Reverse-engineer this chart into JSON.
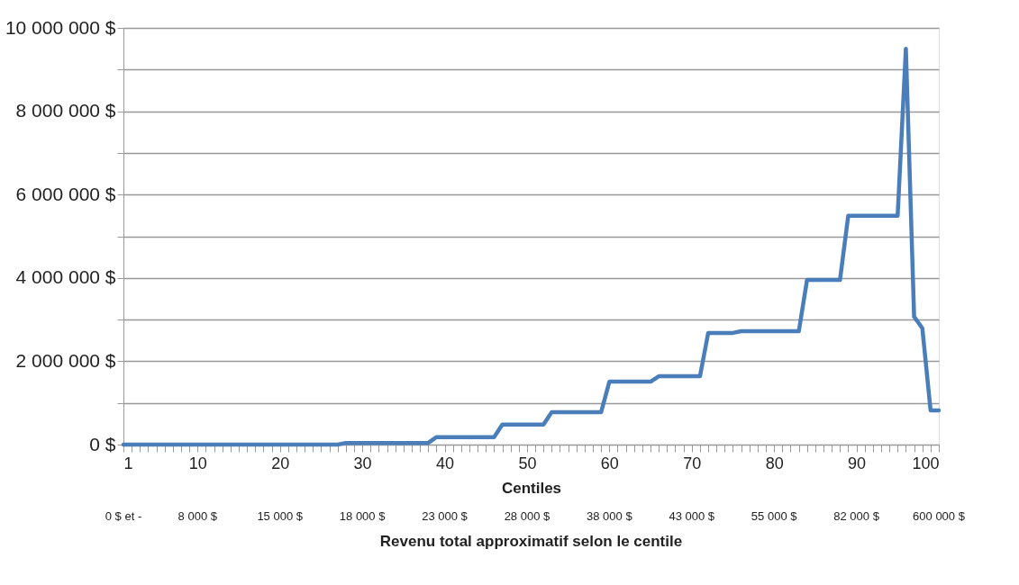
{
  "chart_data": {
    "type": "line",
    "xlabel": "Centiles",
    "annotations": [
      "0 $ et -",
      "8 000 $",
      "15 000 $",
      "18 000 $",
      "23 000 $",
      "28 000 $",
      "38 000 $",
      "43 000 $",
      "55 000 $",
      "82 000 $",
      "600 000 $",
      "Revenu total approximatif selon le centile"
    ],
    "x": [
      1,
      27,
      28,
      38,
      39,
      46,
      47,
      52,
      53,
      59,
      60,
      65,
      66,
      71,
      72,
      75,
      76,
      83,
      84,
      88,
      89,
      95,
      96,
      97,
      98,
      99,
      100
    ],
    "series": [
      {
        "color": "#4a7ebb",
        "values": [
          0,
          0,
          40000,
          40000,
          180000,
          180000,
          480000,
          480000,
          780000,
          780000,
          1510000,
          1510000,
          1640000,
          1640000,
          2680000,
          2680000,
          2720000,
          2720000,
          3950000,
          3950000,
          5490000,
          5490000,
          9500000,
          3070000,
          2790000,
          820000,
          820000
        ]
      }
    ],
    "xlim": [
      1,
      100
    ],
    "xticks": [
      1,
      {
        "value": 2,
        "label": null
      },
      {
        "value": 3,
        "label": null
      },
      {
        "value": 4,
        "label": null
      },
      {
        "value": 5,
        "label": null
      },
      {
        "value": 6,
        "label": null
      },
      {
        "value": 7,
        "label": null
      },
      {
        "value": 8,
        "label": null
      },
      {
        "value": 9,
        "label": null
      },
      10,
      {
        "value": 11,
        "label": null
      },
      {
        "value": 12,
        "label": null
      },
      {
        "value": 13,
        "label": null
      },
      {
        "value": 14,
        "label": null
      },
      {
        "value": 15,
        "label": null
      },
      {
        "value": 16,
        "label": null
      },
      {
        "value": 17,
        "label": null
      },
      {
        "value": 18,
        "label": null
      },
      {
        "value": 19,
        "label": null
      },
      20,
      {
        "value": 21,
        "label": null
      },
      {
        "value": 22,
        "label": null
      },
      {
        "value": 23,
        "label": null
      },
      {
        "value": 24,
        "label": null
      },
      {
        "value": 25,
        "label": null
      },
      {
        "value": 26,
        "label": null
      },
      {
        "value": 27,
        "label": null
      },
      {
        "value": 28,
        "label": null
      },
      {
        "value": 29,
        "label": null
      },
      30,
      {
        "value": 31,
        "label": null
      },
      {
        "value": 32,
        "label": null
      },
      {
        "value": 33,
        "label": null
      },
      {
        "value": 34,
        "label": null
      },
      {
        "value": 35,
        "label": null
      },
      {
        "value": 36,
        "label": null
      },
      {
        "value": 37,
        "label": null
      },
      {
        "value": 38,
        "label": null
      },
      {
        "value": 39,
        "label": null
      },
      40,
      {
        "value": 41,
        "label": null
      },
      {
        "value": 42,
        "label": null
      },
      {
        "value": 43,
        "label": null
      },
      {
        "value": 44,
        "label": null
      },
      {
        "value": 45,
        "label": null
      },
      {
        "value": 46,
        "label": null
      },
      {
        "value": 47,
        "label": null
      },
      {
        "value": 48,
        "label": null
      },
      {
        "value": 49,
        "label": null
      },
      50,
      {
        "value": 51,
        "label": null
      },
      {
        "value": 52,
        "label": null
      },
      {
        "value": 53,
        "label": null
      },
      {
        "value": 54,
        "label": null
      },
      {
        "value": 55,
        "label": null
      },
      {
        "value": 56,
        "label": null
      },
      {
        "value": 57,
        "label": null
      },
      {
        "value": 58,
        "label": null
      },
      {
        "value": 59,
        "label": null
      },
      60,
      {
        "value": 61,
        "label": null
      },
      {
        "value": 62,
        "label": null
      },
      {
        "value": 63,
        "label": null
      },
      {
        "value": 64,
        "label": null
      },
      {
        "value": 65,
        "label": null
      },
      {
        "value": 66,
        "label": null
      },
      {
        "value": 67,
        "label": null
      },
      {
        "value": 68,
        "label": null
      },
      {
        "value": 69,
        "label": null
      },
      70,
      {
        "value": 71,
        "label": null
      },
      {
        "value": 72,
        "label": null
      },
      {
        "value": 73,
        "label": null
      },
      {
        "value": 74,
        "label": null
      },
      {
        "value": 75,
        "label": null
      },
      {
        "value": 76,
        "label": null
      },
      {
        "value": 77,
        "label": null
      },
      {
        "value": 78,
        "label": null
      },
      {
        "value": 79,
        "label": null
      },
      80,
      {
        "value": 81,
        "label": null
      },
      {
        "value": 82,
        "label": null
      },
      {
        "value": 83,
        "label": null
      },
      {
        "value": 84,
        "label": null
      },
      {
        "value": 85,
        "label": null
      },
      {
        "value": 86,
        "label": null
      },
      {
        "value": 87,
        "label": null
      },
      {
        "value": 88,
        "label": null
      },
      {
        "value": 89,
        "label": null
      },
      90,
      {
        "value": 91,
        "label": null
      },
      {
        "value": 92,
        "label": null
      },
      {
        "value": 93,
        "label": null
      },
      {
        "value": 94,
        "label": null
      },
      {
        "value": 95,
        "label": null
      },
      {
        "value": 96,
        "label": null
      },
      {
        "value": 97,
        "label": null
      },
      {
        "value": 98,
        "label": null
      },
      {
        "value": 99,
        "label": null
      },
      100
    ],
    "ylim": [
      0,
      10000000
    ],
    "yticks": [
      {
        "value": 0,
        "label": "0 $"
      },
      {
        "value": 1000000,
        "label": null
      },
      {
        "value": 2000000,
        "label": "2 000 000 $"
      },
      {
        "value": 3000000,
        "label": null
      },
      {
        "value": 4000000,
        "label": "4 000 000 $"
      },
      {
        "value": 5000000,
        "label": null
      },
      {
        "value": 6000000,
        "label": "6 000 000 $"
      },
      {
        "value": 7000000,
        "label": null
      },
      {
        "value": 8000000,
        "label": "8 000 000 $"
      },
      {
        "value": 9000000,
        "label": null
      },
      {
        "value": 10000000,
        "label": "10 000 000 $"
      }
    ],
    "grid": "y",
    "line_style": "solid",
    "marker": "none"
  }
}
